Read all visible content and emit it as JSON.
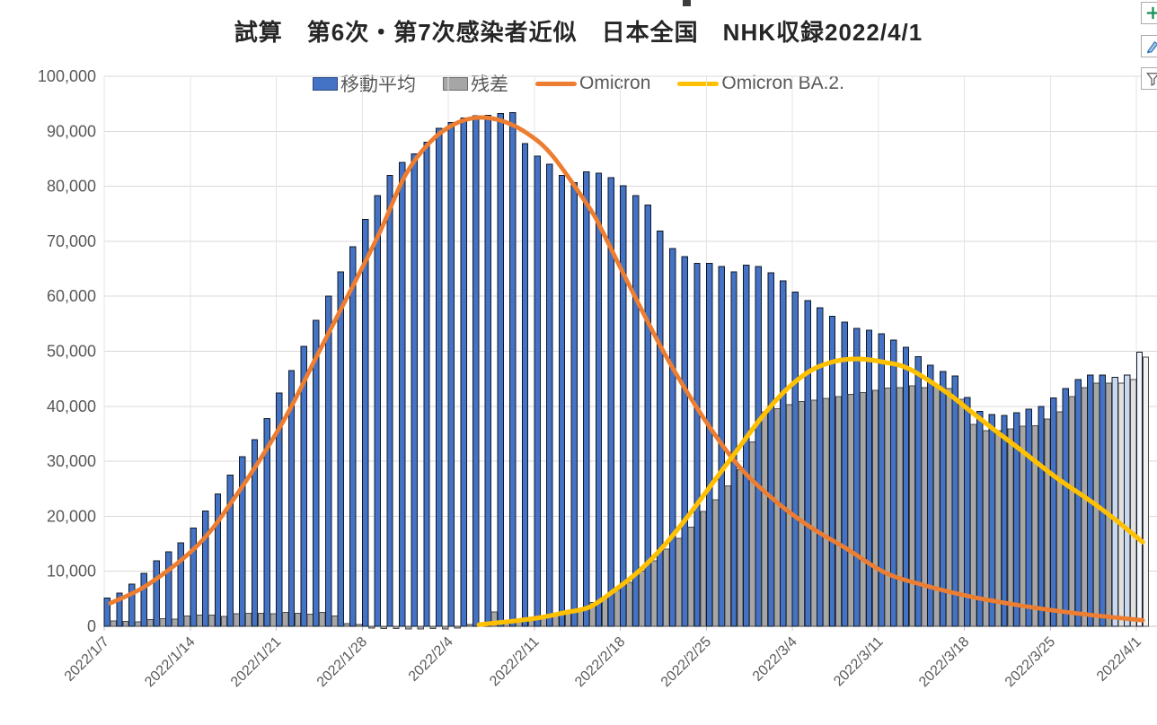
{
  "title": "試算　第6次・第7次感染者近似　日本全国　NHK収録2022/4/1",
  "side_buttons": [
    {
      "name": "chart-elements-button",
      "icon": "plus-icon",
      "color": "#169154"
    },
    {
      "name": "chart-styles-button",
      "icon": "brush-icon",
      "color": "#2e75b6"
    },
    {
      "name": "chart-filters-button",
      "icon": "funnel-icon",
      "color": "#595959"
    }
  ],
  "chart_data": {
    "type": "combo",
    "title": "試算　第6次・第7次感染者近似　日本全国　NHK収録2022/4/1",
    "ylim": [
      0,
      100000
    ],
    "y_tick_labels": [
      "0",
      "10,000",
      "20,000",
      "30,000",
      "40,000",
      "50,000",
      "60,000",
      "70,000",
      "80,000",
      "90,000",
      "100,000"
    ],
    "x_tick_labels": [
      "2022/1/7",
      "2022/1/14",
      "2022/1/21",
      "2022/1/28",
      "2022/2/4",
      "2022/2/11",
      "2022/2/18",
      "2022/2/25",
      "2022/3/4",
      "2022/3/11",
      "2022/3/18",
      "2022/3/25",
      "2022/4/1"
    ],
    "grid": true,
    "legend_position": "top",
    "dates": [
      "2022/1/7",
      "2022/1/8",
      "2022/1/9",
      "2022/1/10",
      "2022/1/11",
      "2022/1/12",
      "2022/1/13",
      "2022/1/14",
      "2022/1/15",
      "2022/1/16",
      "2022/1/17",
      "2022/1/18",
      "2022/1/19",
      "2022/1/20",
      "2022/1/21",
      "2022/1/22",
      "2022/1/23",
      "2022/1/24",
      "2022/1/25",
      "2022/1/26",
      "2022/1/27",
      "2022/1/28",
      "2022/1/29",
      "2022/1/30",
      "2022/1/31",
      "2022/2/1",
      "2022/2/2",
      "2022/2/3",
      "2022/2/4",
      "2022/2/5",
      "2022/2/6",
      "2022/2/7",
      "2022/2/8",
      "2022/2/9",
      "2022/2/10",
      "2022/2/11",
      "2022/2/12",
      "2022/2/13",
      "2022/2/14",
      "2022/2/15",
      "2022/2/16",
      "2022/2/17",
      "2022/2/18",
      "2022/2/19",
      "2022/2/20",
      "2022/2/21",
      "2022/2/22",
      "2022/2/23",
      "2022/2/24",
      "2022/2/25",
      "2022/2/26",
      "2022/2/27",
      "2022/2/28",
      "2022/3/1",
      "2022/3/2",
      "2022/3/3",
      "2022/3/4",
      "2022/3/5",
      "2022/3/6",
      "2022/3/7",
      "2022/3/8",
      "2022/3/9",
      "2022/3/10",
      "2022/3/11",
      "2022/3/12",
      "2022/3/13",
      "2022/3/14",
      "2022/3/15",
      "2022/3/16",
      "2022/3/17",
      "2022/3/18",
      "2022/3/19",
      "2022/3/20",
      "2022/3/21",
      "2022/3/22",
      "2022/3/23",
      "2022/3/24",
      "2022/3/25",
      "2022/3/26",
      "2022/3/27",
      "2022/3/28",
      "2022/3/29",
      "2022/3/30",
      "2022/3/31",
      "2022/4/1"
    ],
    "series": [
      {
        "name": "移動平均",
        "type": "bar",
        "color": "#4472C4",
        "border": "#101826",
        "values": [
          5100,
          6000,
          7700,
          9600,
          11900,
          13500,
          15200,
          17900,
          21000,
          24100,
          27500,
          30800,
          33900,
          37800,
          42400,
          46500,
          50900,
          55600,
          60000,
          64400,
          69000,
          74000,
          78300,
          82000,
          84300,
          85900,
          88000,
          90500,
          91600,
          92400,
          92800,
          92900,
          93200,
          93400,
          87800,
          85500,
          84000,
          82000,
          80700,
          82600,
          82400,
          81600,
          80100,
          78300,
          76600,
          71900,
          68700,
          67200,
          66000,
          66000,
          65400,
          64400,
          65700,
          65400,
          64300,
          62800,
          60800,
          59200,
          57900,
          56400,
          55300,
          54200,
          53800,
          53200,
          52000,
          50700,
          49000,
          47500,
          46300,
          45500,
          41600,
          39100,
          38500,
          38300,
          38800,
          39500,
          40000,
          41500,
          43200,
          44900,
          45700,
          45700,
          45300,
          45700,
          49800
        ]
      },
      {
        "name": "残差",
        "type": "bar",
        "color": "#A6A6A6",
        "border": "#4a4a4a",
        "values": [
          1000,
          900,
          800,
          1200,
          1400,
          1300,
          1900,
          2000,
          2000,
          1800,
          2300,
          2400,
          2400,
          2300,
          2500,
          2400,
          2200,
          2500,
          1900,
          500,
          300,
          -300,
          -400,
          -400,
          -500,
          -500,
          -400,
          -500,
          -300,
          300,
          400,
          2600,
          500,
          800,
          1200,
          1500,
          2000,
          2700,
          3300,
          4300,
          5200,
          6500,
          8000,
          10000,
          11900,
          14000,
          16000,
          18000,
          20900,
          23000,
          25500,
          28500,
          33500,
          39000,
          39600,
          40300,
          40900,
          41100,
          41400,
          41800,
          42200,
          42500,
          42900,
          43300,
          43400,
          43700,
          43400,
          43700,
          43200,
          41300,
          36700,
          35600,
          35600,
          35900,
          36400,
          36500,
          37700,
          39000,
          41800,
          43400,
          44200,
          44200,
          44200,
          44900,
          48900
        ]
      },
      {
        "name": "Omicron",
        "type": "line",
        "color": "#ED7D31",
        "width": 4.8,
        "anchors": [
          [
            0,
            4200
          ],
          [
            3,
            7500
          ],
          [
            7,
            14500
          ],
          [
            10,
            23000
          ],
          [
            14,
            37000
          ],
          [
            17,
            50000
          ],
          [
            20,
            63000
          ],
          [
            22,
            72000
          ],
          [
            24,
            82000
          ],
          [
            26,
            88000
          ],
          [
            28,
            91300
          ],
          [
            30,
            92500
          ],
          [
            32,
            91800
          ],
          [
            34,
            89500
          ],
          [
            36,
            85500
          ],
          [
            39,
            76000
          ],
          [
            40,
            72000
          ],
          [
            42,
            63000
          ],
          [
            45,
            50000
          ],
          [
            48,
            38800
          ],
          [
            51,
            29500
          ],
          [
            54,
            23000
          ],
          [
            57,
            18000
          ],
          [
            60,
            14000
          ],
          [
            63,
            9800
          ],
          [
            66,
            7600
          ],
          [
            70,
            5400
          ],
          [
            74,
            3800
          ],
          [
            77,
            2800
          ],
          [
            80,
            2000
          ],
          [
            84,
            1100
          ]
        ]
      },
      {
        "name": "Omicron BA.2.",
        "type": "line",
        "color": "#FFC000",
        "width": 5.2,
        "anchors": [
          [
            30,
            300
          ],
          [
            33,
            1000
          ],
          [
            35,
            1600
          ],
          [
            37,
            2500
          ],
          [
            39,
            3500
          ],
          [
            41,
            6500
          ],
          [
            43,
            10000
          ],
          [
            45,
            14500
          ],
          [
            47,
            20000
          ],
          [
            49,
            26000
          ],
          [
            51,
            32000
          ],
          [
            53,
            38000
          ],
          [
            55,
            43000
          ],
          [
            57,
            46500
          ],
          [
            59,
            48200
          ],
          [
            61,
            48600
          ],
          [
            63,
            48000
          ],
          [
            65,
            46800
          ],
          [
            68,
            42600
          ],
          [
            70,
            39100
          ],
          [
            72,
            35600
          ],
          [
            74,
            32200
          ],
          [
            77,
            27000
          ],
          [
            80,
            22400
          ],
          [
            82,
            19000
          ],
          [
            84,
            15300
          ]
        ]
      }
    ],
    "fade": {
      "pale_days": [
        82,
        83
      ],
      "pale_fill_blue": "#C9D7EF",
      "pale_fill_gray": "#E0E0E0",
      "white_days": [
        84
      ],
      "white_fill_blue": "#F2F6FC",
      "white_fill_gray": "#F2F2F2"
    },
    "colors": {
      "grid_h": "#D9D9D9",
      "grid_v": "#E4E4E4",
      "axis": "#C6C6C6",
      "tick": "#C6C6C6",
      "axis_label": "#595959"
    }
  }
}
